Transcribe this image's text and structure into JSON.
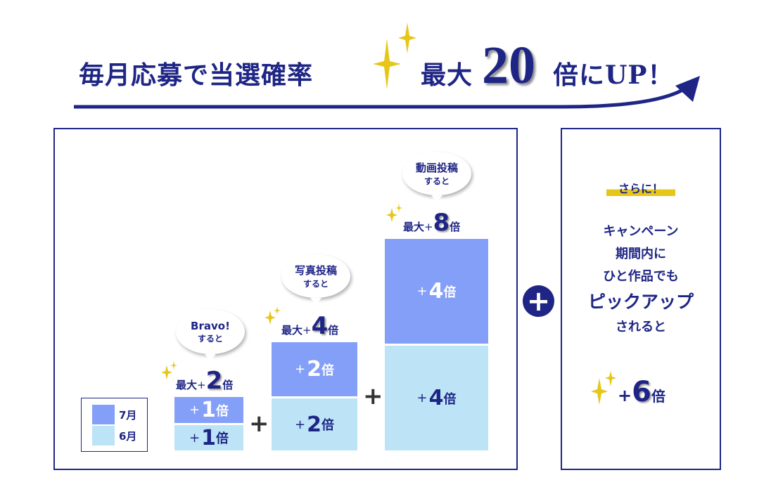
{
  "header": {
    "text": "毎月応募で当選確率",
    "max": "最大",
    "number": "20",
    "suffix": "倍にUP！"
  },
  "legend": [
    {
      "label": "7月",
      "color": "#849ff7"
    },
    {
      "label": "6月",
      "color": "#bde3f7"
    }
  ],
  "stacks": [
    {
      "bubble1": "Bravo!",
      "bubble2": "すると",
      "max_prefix": "最大",
      "plus": "+",
      "max_value": "2",
      "unit": "倍",
      "july": "1",
      "june": "1"
    },
    {
      "bubble1": "写真投稿",
      "bubble2": "すると",
      "max_prefix": "最大",
      "plus": "+",
      "max_value": "4",
      "unit": "倍",
      "july": "2",
      "june": "2"
    },
    {
      "bubble1": "動画投稿",
      "bubble2": "すると",
      "max_prefix": "最大",
      "plus": "+",
      "max_value": "8",
      "unit": "倍",
      "july": "4",
      "june": "4"
    }
  ],
  "operators": {
    "plus": "+"
  },
  "bonus": {
    "tag": "さらに！",
    "lines": [
      "キャンペーン",
      "期間内に",
      "ひと作品でも"
    ],
    "highlight": "ピックアップ",
    "line_after": "されると",
    "plus": "+",
    "value": "6",
    "unit": "倍"
  },
  "colors": {
    "navy": "#1e2585",
    "july": "#849ff7",
    "june": "#bde3f7",
    "gold": "#e6c619"
  }
}
